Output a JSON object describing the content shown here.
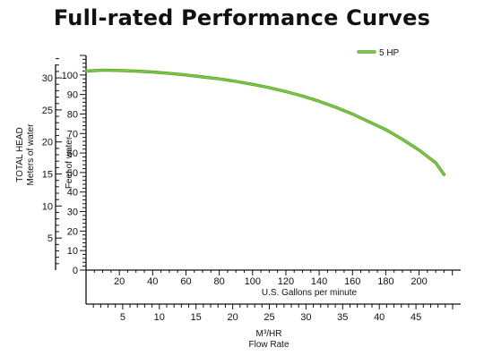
{
  "chart_data": {
    "type": "line",
    "title": "Full-rated Performance Curves",
    "legend": {
      "placement": "top-right",
      "entries": [
        "5 HP"
      ]
    },
    "series": [
      {
        "name": "5 HP",
        "color": "#7ac943",
        "x": [
          0,
          10,
          20,
          30,
          40,
          50,
          60,
          70,
          80,
          90,
          100,
          110,
          120,
          130,
          140,
          150,
          160,
          170,
          180,
          190,
          200,
          210,
          215
        ],
        "y": [
          102,
          102.5,
          102.3,
          102,
          101.5,
          100.8,
          100,
          99,
          98,
          96.7,
          95.2,
          93.5,
          91.5,
          89.2,
          86.5,
          83.4,
          80,
          76,
          72,
          67,
          61.5,
          55,
          49
        ]
      }
    ],
    "axes": {
      "gallons": {
        "label": "U.S. Gallons per minute",
        "ticks": [
          20,
          40,
          60,
          80,
          100,
          120,
          140,
          160,
          180,
          200
        ],
        "range": [
          0,
          225
        ]
      },
      "m3hr": {
        "label": "M³/HR",
        "sublabel": "Flow Rate",
        "ticks": [
          5,
          10,
          15,
          20,
          25,
          30,
          35,
          40,
          45
        ],
        "range": [
          0,
          51.1
        ]
      },
      "feet": {
        "label": "Feet of water",
        "ticks": [
          0,
          10,
          20,
          30,
          40,
          50,
          60,
          70,
          80,
          90,
          100
        ],
        "range": [
          0,
          110
        ]
      },
      "meters": {
        "label": "TOTAL HEAD",
        "sublabel": "Meters of water",
        "ticks": [
          5,
          10,
          15,
          20,
          25,
          30
        ],
        "range": [
          0,
          33.5
        ]
      }
    },
    "grid": false
  }
}
